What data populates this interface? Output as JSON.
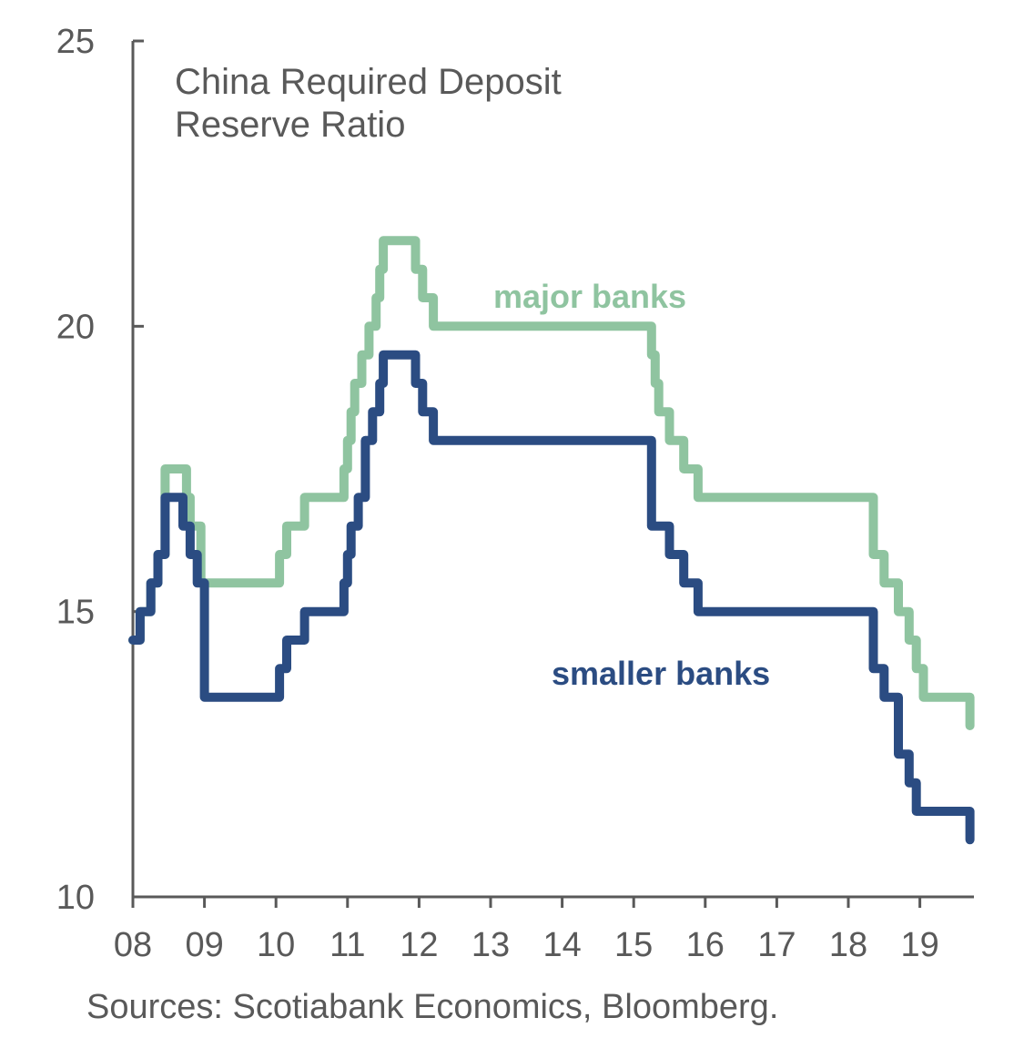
{
  "chart_data": {
    "type": "line",
    "title_lines": [
      "China Required Deposit",
      "Reserve Ratio"
    ],
    "source": "Sources: Scotiabank Economics, Bloomberg.",
    "x_tick_labels": [
      "08",
      "09",
      "10",
      "11",
      "12",
      "13",
      "14",
      "15",
      "16",
      "17",
      "18",
      "19"
    ],
    "x_ticks": [
      2008,
      2009,
      2010,
      2011,
      2012,
      2013,
      2014,
      2015,
      2016,
      2017,
      2018,
      2019
    ],
    "xlim": [
      2008,
      2019.7
    ],
    "ylim": [
      10,
      25
    ],
    "y_ticks": [
      10,
      15,
      20,
      25
    ],
    "grid": false,
    "series": [
      {
        "name": "major banks",
        "color": "#8fc4a0",
        "x": [
          2008.0,
          2008.1,
          2008.25,
          2008.35,
          2008.45,
          2008.75,
          2008.8,
          2008.95,
          2009.95,
          2010.05,
          2010.15,
          2010.3,
          2010.4,
          2010.95,
          2011.0,
          2011.05,
          2011.1,
          2011.2,
          2011.3,
          2011.4,
          2011.45,
          2011.5,
          2011.95,
          2012.05,
          2012.2,
          2012.4,
          2015.2,
          2015.25,
          2015.3,
          2015.35,
          2015.5,
          2015.7,
          2015.9,
          2016.1,
          2018.3,
          2018.35,
          2018.5,
          2018.7,
          2018.85,
          2018.95,
          2019.05,
          2019.65,
          2019.7
        ],
        "y": [
          14.5,
          15.0,
          15.5,
          16.0,
          17.5,
          17.0,
          16.5,
          15.5,
          15.5,
          16.0,
          16.5,
          16.5,
          17.0,
          17.5,
          18.0,
          18.5,
          19.0,
          19.5,
          20.0,
          20.5,
          21.0,
          21.5,
          21.0,
          20.5,
          20.0,
          20.0,
          20.0,
          19.5,
          19.0,
          18.5,
          18.0,
          17.5,
          17.0,
          17.0,
          17.0,
          16.0,
          15.5,
          15.0,
          14.5,
          14.0,
          13.5,
          13.5,
          13.0
        ]
      },
      {
        "name": "smaller banks",
        "color": "#2b4c82",
        "x": [
          2008.0,
          2008.1,
          2008.25,
          2008.35,
          2008.45,
          2008.7,
          2008.8,
          2008.9,
          2009.0,
          2010.0,
          2010.05,
          2010.15,
          2010.3,
          2010.4,
          2010.95,
          2011.0,
          2011.05,
          2011.15,
          2011.25,
          2011.35,
          2011.45,
          2011.5,
          2011.95,
          2012.05,
          2012.2,
          2012.4,
          2015.2,
          2015.25,
          2015.5,
          2015.7,
          2015.9,
          2016.1,
          2018.3,
          2018.35,
          2018.5,
          2018.7,
          2018.85,
          2018.95,
          2019.05,
          2019.65,
          2019.7
        ],
        "y": [
          14.5,
          15.0,
          15.5,
          16.0,
          17.0,
          16.5,
          16.0,
          15.5,
          13.5,
          13.5,
          14.0,
          14.5,
          14.5,
          15.0,
          15.5,
          16.0,
          16.5,
          17.0,
          18.0,
          18.5,
          19.0,
          19.5,
          19.0,
          18.5,
          18.0,
          18.0,
          18.0,
          16.5,
          16.0,
          15.5,
          15.0,
          15.0,
          15.0,
          14.0,
          13.5,
          12.5,
          12.0,
          11.5,
          11.5,
          11.5,
          11.0
        ]
      }
    ]
  }
}
